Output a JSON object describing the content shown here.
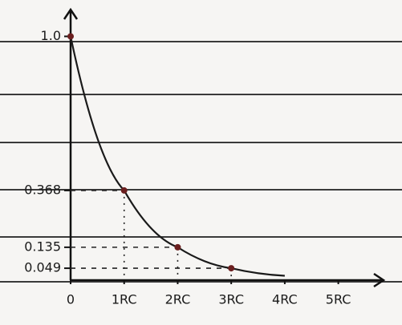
{
  "chart_data": {
    "type": "line",
    "x": [
      0,
      1,
      2,
      3,
      4
    ],
    "series": [
      {
        "color": "#1a1a1a",
        "values": [
          1,
          0.368,
          0.135,
          0.049,
          0.018
        ]
      }
    ],
    "marked": [
      0,
      1,
      2,
      3
    ],
    "xlim": [
      0,
      5.8
    ],
    "ylim": [
      0,
      1.1
    ],
    "xticks": [
      0,
      {
        "value": 1,
        "label": "1RC"
      },
      {
        "value": 2,
        "label": "2RC"
      },
      {
        "value": 3,
        "label": "3RC"
      },
      {
        "value": 4,
        "label": "4RC"
      },
      {
        "value": 5,
        "label": "5RC"
      }
    ],
    "yticks": [
      {
        "value": 1,
        "label": "1.0"
      },
      0.368,
      0.135,
      0.049
    ]
  }
}
